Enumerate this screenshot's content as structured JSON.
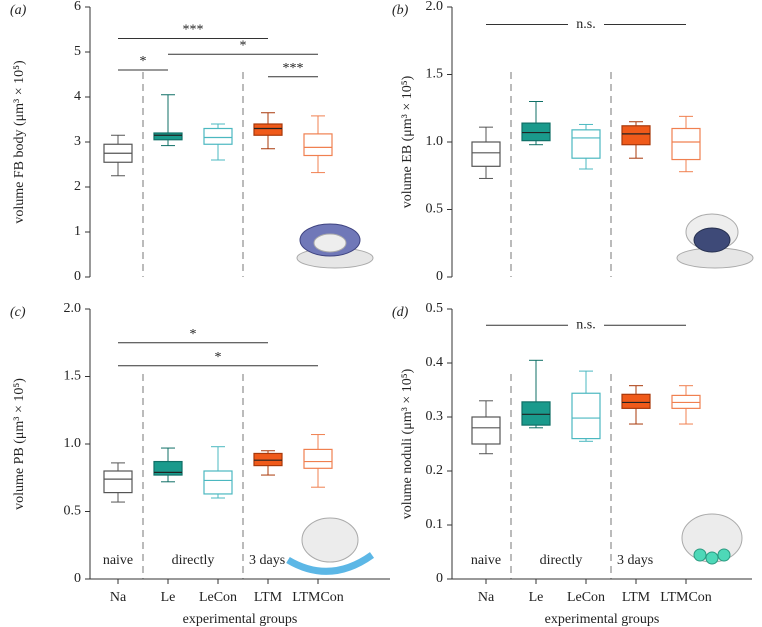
{
  "chart_data": [
    {
      "type": "box",
      "panel_label": "(a)",
      "ylabel": "volume FB body (μm³ × 10⁵)",
      "ylim": [
        0,
        6
      ],
      "yticks": [
        0,
        1,
        2,
        3,
        4,
        5,
        6
      ],
      "boxes": [
        {
          "fill": "#ffffff",
          "stroke": "#555555",
          "values": [
            2.25,
            2.55,
            2.75,
            2.95,
            3.15
          ]
        },
        {
          "fill": "#1a9a8c",
          "stroke": "#0f6f66",
          "values": [
            2.92,
            3.05,
            3.15,
            3.2,
            4.05
          ]
        },
        {
          "fill": "#ffffff",
          "stroke": "#4bb8c0",
          "values": [
            2.6,
            2.95,
            3.1,
            3.3,
            3.4
          ]
        },
        {
          "fill": "#f05a1a",
          "stroke": "#a8380a",
          "values": [
            2.85,
            3.15,
            3.3,
            3.4,
            3.65
          ]
        },
        {
          "fill": "#ffffff",
          "stroke": "#f08050",
          "values": [
            2.32,
            2.7,
            2.88,
            3.18,
            3.58
          ]
        }
      ],
      "annotations": [
        {
          "text": "***",
          "span": [
            0,
            3
          ],
          "y": 5.3
        },
        {
          "text": "*",
          "span": [
            1,
            4
          ],
          "y": 4.95
        },
        {
          "text": "*",
          "span": [
            0,
            1
          ],
          "y": 4.6
        },
        {
          "text": "***",
          "span": [
            3,
            4
          ],
          "y": 4.45
        }
      ]
    },
    {
      "type": "box",
      "panel_label": "(b)",
      "ylabel": "volume EB (μm³ × 10⁵)",
      "ylim": [
        0,
        2
      ],
      "yticks": [
        0,
        0.5,
        {
          "value": 1,
          "label": "1.0"
        },
        1.5,
        {
          "value": 2,
          "label": "2.0"
        }
      ],
      "boxes": [
        {
          "fill": "#ffffff",
          "stroke": "#555555",
          "values": [
            0.73,
            0.82,
            0.92,
            1.0,
            1.11
          ]
        },
        {
          "fill": "#1a9a8c",
          "stroke": "#0f6f66",
          "values": [
            0.98,
            1.01,
            1.07,
            1.14,
            1.3
          ]
        },
        {
          "fill": "#ffffff",
          "stroke": "#4bb8c0",
          "values": [
            0.8,
            0.88,
            1.03,
            1.09,
            1.13
          ]
        },
        {
          "fill": "#f05a1a",
          "stroke": "#a8380a",
          "values": [
            0.88,
            0.98,
            1.06,
            1.12,
            1.15
          ]
        },
        {
          "fill": "#ffffff",
          "stroke": "#f08050",
          "values": [
            0.78,
            0.87,
            1.0,
            1.1,
            1.19
          ]
        }
      ],
      "annotations": [
        {
          "text": "n.s.",
          "span": [
            0,
            4
          ],
          "y": 1.87
        }
      ]
    },
    {
      "type": "box",
      "panel_label": "(c)",
      "ylabel": "volume PB (μm³ × 10⁵)",
      "xlabel": "experimental groups",
      "categories": [
        "Na",
        "Le",
        "LeCon",
        "LTM",
        "LTMCon"
      ],
      "group_labels": [
        "naive",
        "directly",
        "3 days"
      ],
      "ylim": [
        0,
        2
      ],
      "yticks": [
        0,
        0.5,
        {
          "value": 1,
          "label": "1.0"
        },
        1.5,
        {
          "value": 2,
          "label": "2.0"
        }
      ],
      "boxes": [
        {
          "fill": "#ffffff",
          "stroke": "#555555",
          "values": [
            0.57,
            0.64,
            0.74,
            0.8,
            0.86
          ]
        },
        {
          "fill": "#1a9a8c",
          "stroke": "#0f6f66",
          "values": [
            0.72,
            0.77,
            0.79,
            0.87,
            0.97
          ]
        },
        {
          "fill": "#ffffff",
          "stroke": "#4bb8c0",
          "values": [
            0.6,
            0.63,
            0.73,
            0.8,
            0.98
          ]
        },
        {
          "fill": "#f05a1a",
          "stroke": "#a8380a",
          "values": [
            0.77,
            0.84,
            0.88,
            0.93,
            0.95
          ]
        },
        {
          "fill": "#ffffff",
          "stroke": "#f08050",
          "values": [
            0.68,
            0.82,
            0.87,
            0.96,
            1.07
          ]
        }
      ],
      "annotations": [
        {
          "text": "*",
          "span": [
            0,
            3
          ],
          "y": 1.75
        },
        {
          "text": "*",
          "span": [
            0,
            4
          ],
          "y": 1.58
        }
      ]
    },
    {
      "type": "box",
      "panel_label": "(d)",
      "ylabel": "volume noduli (μm³ × 10⁵)",
      "xlabel": "experimental groups",
      "categories": [
        "Na",
        "Le",
        "LeCon",
        "LTM",
        "LTMCon"
      ],
      "group_labels": [
        "naive",
        "directly",
        "3 days"
      ],
      "ylim": [
        0,
        0.5
      ],
      "yticks": [
        0,
        0.1,
        0.2,
        0.3,
        0.4,
        0.5
      ],
      "boxes": [
        {
          "fill": "#ffffff",
          "stroke": "#555555",
          "values": [
            0.232,
            0.25,
            0.28,
            0.3,
            0.33
          ]
        },
        {
          "fill": "#1a9a8c",
          "stroke": "#0f6f66",
          "values": [
            0.28,
            0.285,
            0.305,
            0.328,
            0.405
          ]
        },
        {
          "fill": "#ffffff",
          "stroke": "#4bb8c0",
          "values": [
            0.255,
            0.26,
            0.298,
            0.344,
            0.385
          ]
        },
        {
          "fill": "#f05a1a",
          "stroke": "#a8380a",
          "values": [
            0.287,
            0.316,
            0.327,
            0.342,
            0.358
          ]
        },
        {
          "fill": "#ffffff",
          "stroke": "#f08050",
          "values": [
            0.287,
            0.316,
            0.327,
            0.34,
            0.358
          ]
        }
      ],
      "annotations": [
        {
          "text": "n.s.",
          "span": [
            0,
            4
          ],
          "y": 0.47
        }
      ]
    }
  ]
}
